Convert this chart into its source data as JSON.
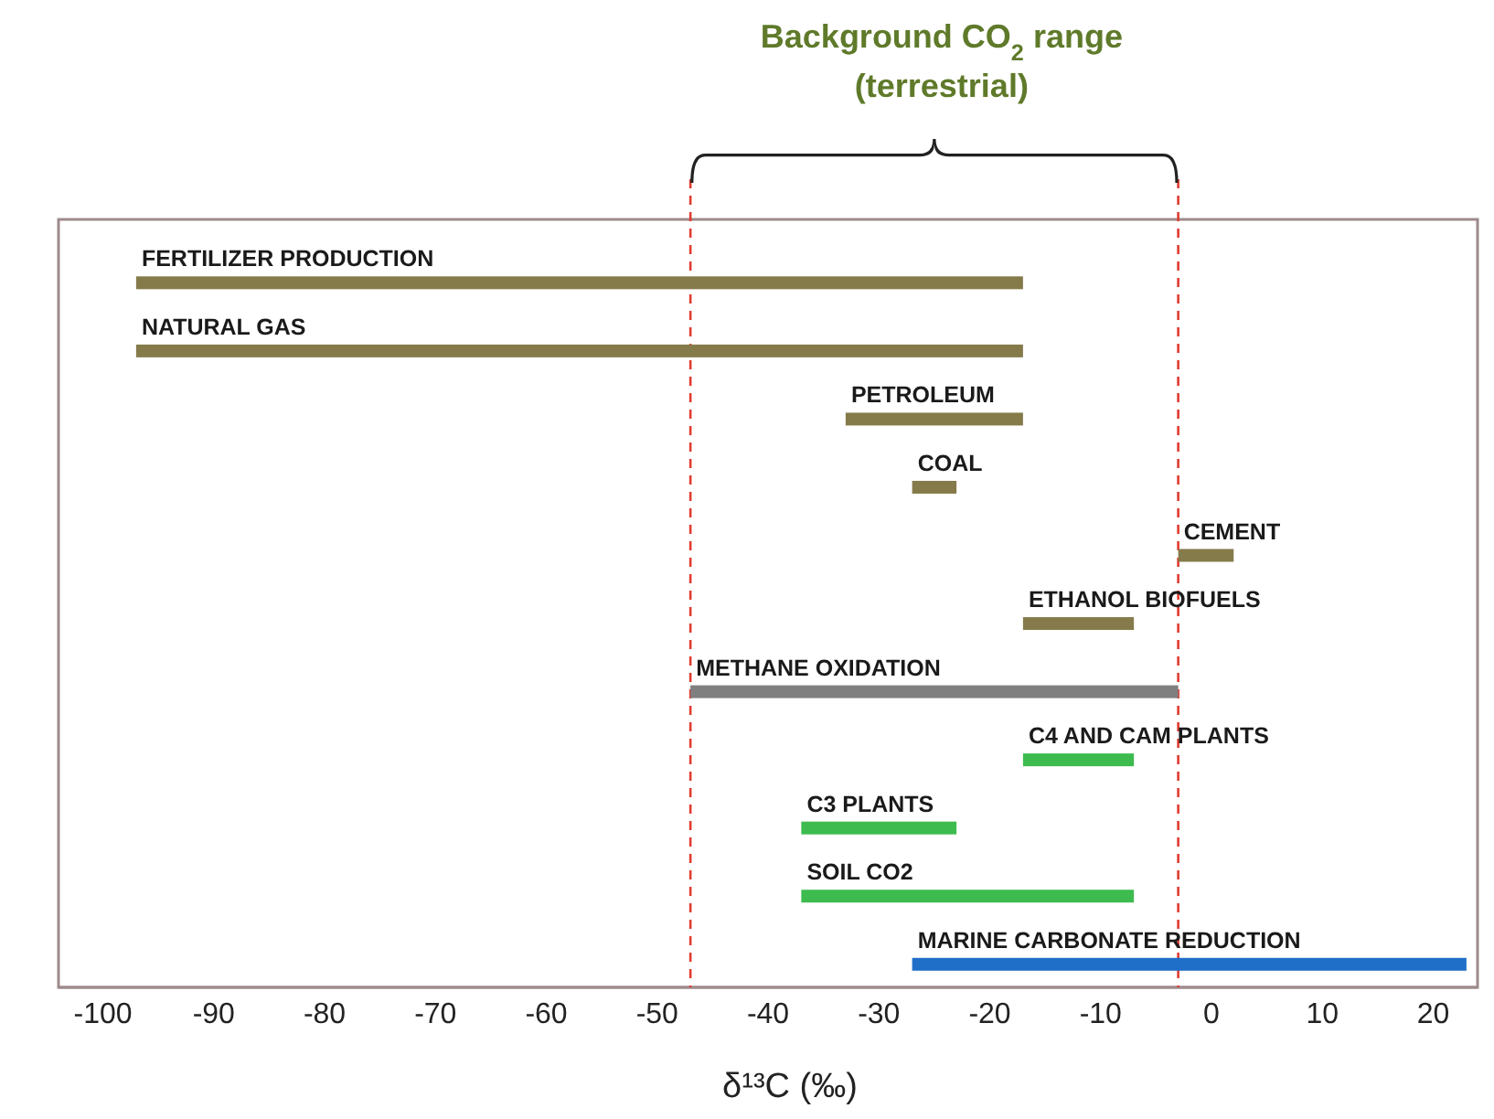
{
  "chart_data": {
    "type": "bar",
    "orientation": "horizontal",
    "categories": [
      "FERTILIZER PRODUCTION",
      "NATURAL GAS",
      "PETROLEUM",
      "COAL",
      "CEMENT",
      "ETHANOL BIOFUELS",
      "METHANE OXIDATION",
      "C4 AND CAM PLANTS",
      "C3 PLANTS",
      "SOIL CO2",
      "MARINE CARBONATE REDUCTION"
    ],
    "base": [
      -97,
      -97,
      -33,
      -27,
      -3,
      -17,
      -47,
      -17,
      -37,
      -37,
      -27
    ],
    "values": [
      80,
      80,
      16,
      4,
      5,
      10,
      44,
      10,
      14,
      30,
      50
    ],
    "colors": [
      "#857a4a",
      "#857a4a",
      "#857a4a",
      "#857a4a",
      "#857a4a",
      "#857a4a",
      "#7f7f7f",
      "#3dbb4e",
      "#3dbb4e",
      "#3dbb4e",
      "#1f6fc8"
    ],
    "xlim": [
      -104,
      24
    ],
    "xticks": [
      -100,
      -90,
      -80,
      -70,
      -60,
      -50,
      -40,
      -30,
      -20,
      -10,
      0,
      10,
      20
    ],
    "xlabel": "δ¹³C (‰)",
    "tick_labels": "x",
    "ref_lines": [
      {
        "axis": "x",
        "value": -47,
        "color": "#e03c31",
        "line_style": "dashed"
      },
      {
        "axis": "x",
        "value": -3,
        "color": "#e03c31",
        "line_style": "dashed"
      }
    ],
    "annotations": [
      "Background CO$_{2}$ range (terrestrial)"
    ]
  }
}
